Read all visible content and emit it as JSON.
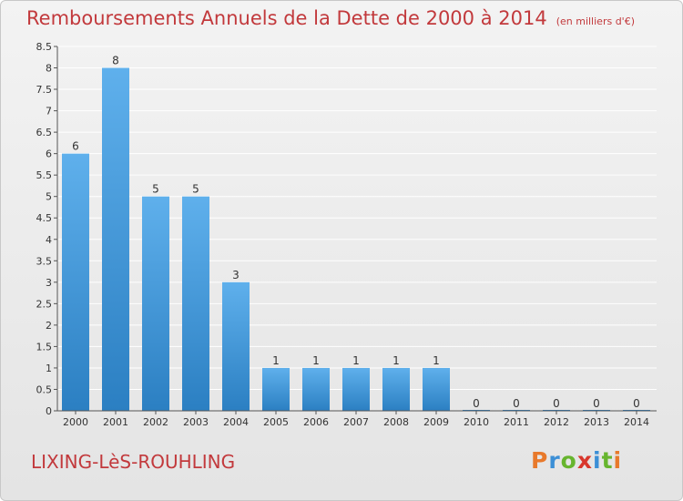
{
  "title": "Remboursements Annuels de la Dette de 2000 à 2014",
  "subtitle": "(en milliers d'€)",
  "place": "LIXING-LèS-ROUHLING",
  "brand": {
    "text": "Proxiti",
    "letter_colors": [
      "#e8792b",
      "#3c8fd6",
      "#67b52e",
      "#d8372c",
      "#3c8fd6",
      "#67b52e",
      "#e8792b"
    ]
  },
  "colors": {
    "title": "#c2393c",
    "bar_top": "#5fb0ec",
    "bar_bottom": "#2b7fc2",
    "grid": "#ffffff",
    "axis": "#555555"
  },
  "chart_data": {
    "type": "bar",
    "categories": [
      "2000",
      "2001",
      "2002",
      "2003",
      "2004",
      "2005",
      "2006",
      "2007",
      "2008",
      "2009",
      "2010",
      "2011",
      "2012",
      "2013",
      "2014"
    ],
    "values": [
      6,
      8,
      5,
      5,
      3,
      1,
      1,
      1,
      1,
      1,
      0,
      0,
      0,
      0,
      0
    ],
    "ylim": [
      0,
      8.5
    ],
    "yticks": [
      0,
      0.5,
      1,
      1.5,
      2,
      2.5,
      3,
      3.5,
      4,
      4.5,
      5,
      5.5,
      6,
      6.5,
      7,
      7.5,
      8,
      8.5
    ],
    "ytick_labels": [
      "0",
      "0.5",
      "1",
      "1.5",
      "2",
      "2.5",
      "3",
      "3.5",
      "4",
      "4.5",
      "5",
      "5.5",
      "6",
      "6.5",
      "7",
      "7.5",
      "8",
      "8.5"
    ],
    "grid": true
  }
}
